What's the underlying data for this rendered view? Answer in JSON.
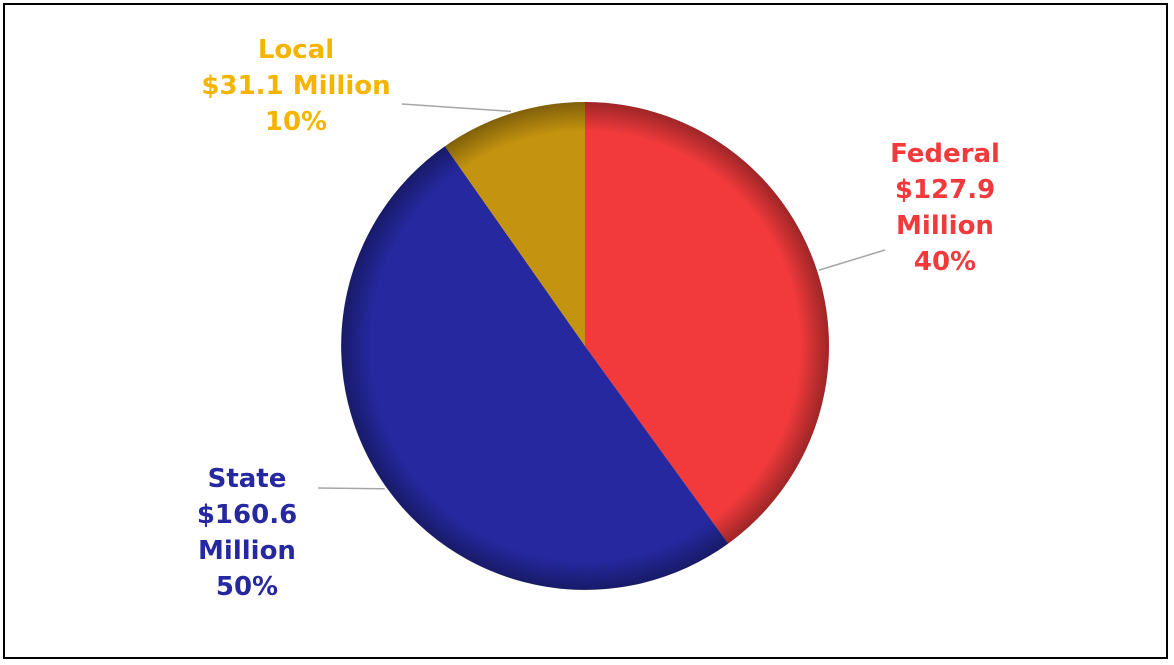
{
  "chart_data": {
    "type": "pie",
    "title": "",
    "start_angle_deg": 0,
    "direction": "clockwise",
    "slices": [
      {
        "name": "Federal",
        "amount": "$127.9",
        "unit": "Million",
        "percent": "40%",
        "value": 127.9,
        "color": "#f23a3c"
      },
      {
        "name": "State",
        "amount": "$160.6",
        "unit": "Million",
        "percent": "50%",
        "value": 160.6,
        "color": "#25289f"
      },
      {
        "name": "Local",
        "amount": "$31.1",
        "unit": "Million",
        "percent": "10%",
        "value": 31.1,
        "color": "#c4930f"
      }
    ]
  }
}
